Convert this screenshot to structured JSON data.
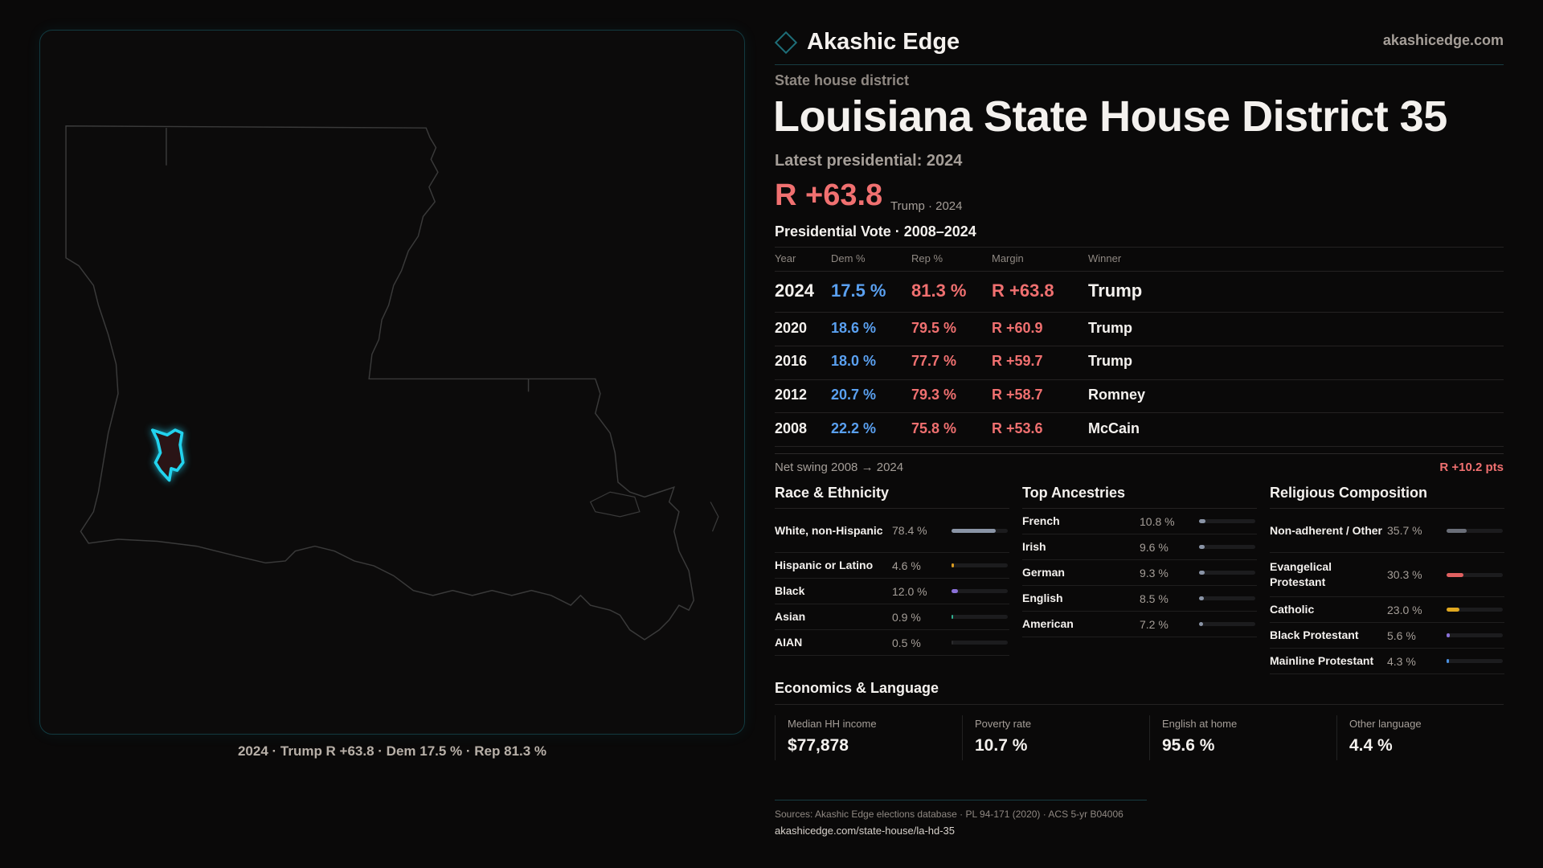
{
  "brand": {
    "name": "Akashic Edge",
    "site": "akashicedge.com",
    "logo_icon": "diamond-icon"
  },
  "header": {
    "kicker": "State house district",
    "title": "Louisiana State House District 35",
    "latest": "Latest presidential: 2024",
    "margin": "R +63.8",
    "margin_sub": "Trump · 2024"
  },
  "map": {
    "caption": "2024 · Trump R +63.8 · Dem 17.5 % · Rep 81.3 %",
    "highlight_color": "#22d3ee"
  },
  "vote_table": {
    "title": "Presidential Vote · 2008–2024",
    "headers": [
      "Year",
      "Dem %",
      "Rep %",
      "Margin",
      "Winner"
    ],
    "rows": [
      [
        "2024",
        "17.5 %",
        "81.3 %",
        "R +63.8",
        "Trump"
      ],
      [
        "2020",
        "18.6 %",
        "79.5 %",
        "R +60.9",
        "Trump"
      ],
      [
        "2016",
        "18.0 %",
        "77.7 %",
        "R +59.7",
        "Trump"
      ],
      [
        "2012",
        "20.7 %",
        "79.3 %",
        "R +58.7",
        "Romney"
      ],
      [
        "2008",
        "22.2 %",
        "75.8 %",
        "R +53.6",
        "McCain"
      ]
    ],
    "swing_label": "Net swing 2008 → 2024",
    "swing_value": "R +10.2 pts"
  },
  "colors": {
    "dem": "#5aa0f0",
    "rep": "#f07070",
    "text": "#f4f1ee",
    "muted": "#a59e98"
  },
  "sections": [
    {
      "title": "Race & Ethnicity",
      "items": [
        {
          "label": "White, non-Hispanic",
          "value": "78.4 %",
          "pct": 78.4,
          "color": "#8a94a6"
        },
        {
          "label": "Hispanic or Latino",
          "value": "4.6 %",
          "pct": 4.6,
          "color": "#d89a20"
        },
        {
          "label": "Black",
          "value": "12.0 %",
          "pct": 12.0,
          "color": "#8a70d8"
        },
        {
          "label": "Asian",
          "value": "0.9 %",
          "pct": 0.9,
          "color": "#30b090"
        },
        {
          "label": "AIAN",
          "value": "0.5 %",
          "pct": 0.5,
          "color": "#2a2a2c"
        }
      ]
    },
    {
      "title": "Top Ancestries",
      "items": [
        {
          "label": "French",
          "value": "10.8 %",
          "pct": 10.8,
          "color": "#8a94a6"
        },
        {
          "label": "Irish",
          "value": "9.6 %",
          "pct": 9.6,
          "color": "#8a94a6"
        },
        {
          "label": "German",
          "value": "9.3 %",
          "pct": 9.3,
          "color": "#8a94a6"
        },
        {
          "label": "English",
          "value": "8.5 %",
          "pct": 8.5,
          "color": "#8a94a6"
        },
        {
          "label": "American",
          "value": "7.2 %",
          "pct": 7.2,
          "color": "#8a94a6"
        }
      ]
    },
    {
      "title": "Religious Composition",
      "items": [
        {
          "label": "Non-adherent / Other",
          "value": "35.7 %",
          "pct": 35.7,
          "color": "#6a6e78"
        },
        {
          "label": "Evangelical Protestant",
          "value": "30.3 %",
          "pct": 30.3,
          "color": "#e06060"
        },
        {
          "label": "Catholic",
          "value": "23.0 %",
          "pct": 23.0,
          "color": "#e0a820"
        },
        {
          "label": "Black Protestant",
          "value": "5.6 %",
          "pct": 5.6,
          "color": "#8a70d8"
        },
        {
          "label": "Mainline Protestant",
          "value": "4.3 %",
          "pct": 4.3,
          "color": "#4a90e0"
        }
      ]
    }
  ],
  "economics": {
    "title": "Economics & Language",
    "cards": [
      {
        "label": "Median HH income",
        "value": "$77,878"
      },
      {
        "label": "Poverty rate",
        "value": "10.7 %"
      },
      {
        "label": "English at home",
        "value": "95.6 %"
      },
      {
        "label": "Other language",
        "value": "4.4 %"
      }
    ]
  },
  "footer": {
    "sources": "Sources: Akashic Edge elections database · PL 94-171 (2020) · ACS 5-yr B04006",
    "url": "akashicedge.com/state-house/la-hd-35"
  }
}
